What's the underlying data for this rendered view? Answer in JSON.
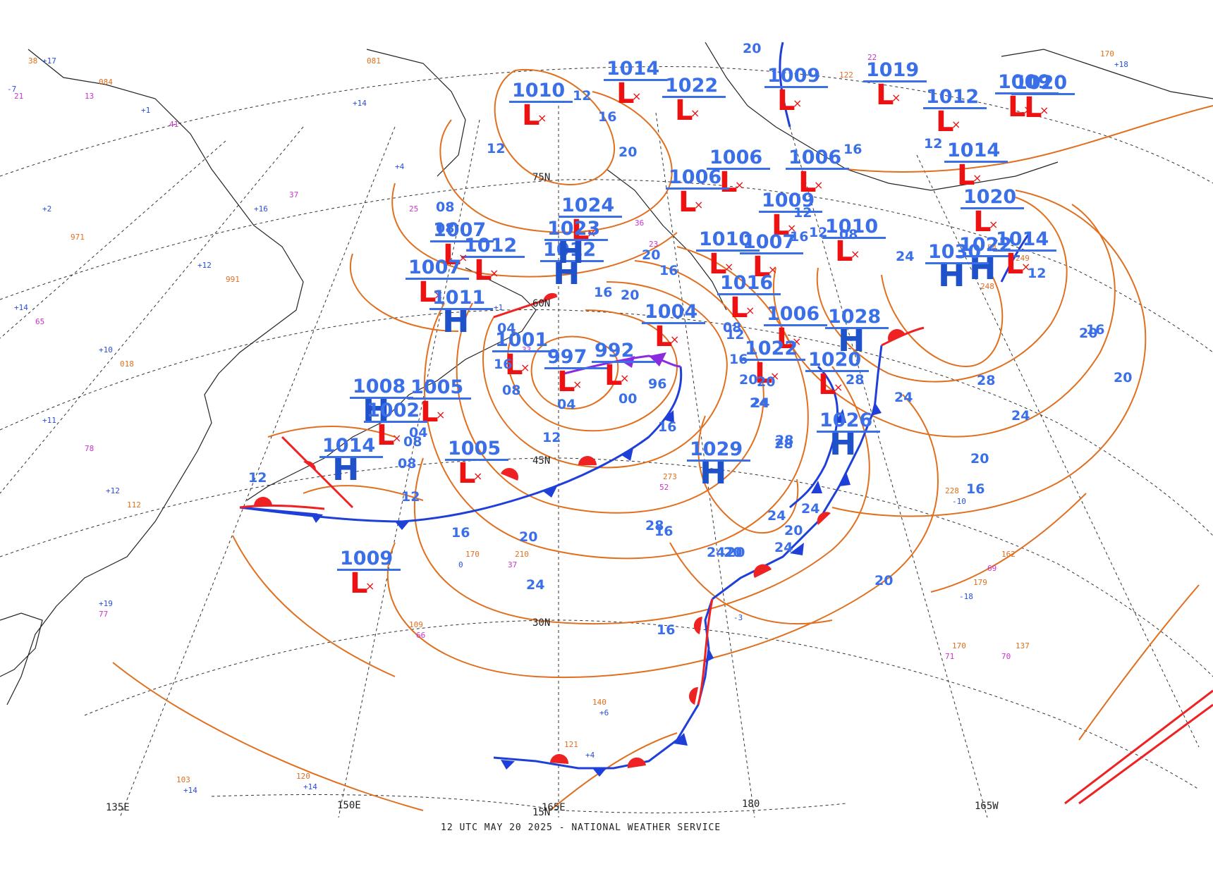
{
  "title": "12 UTC MAY 20 2025 - NATIONAL WEATHER SERVICE",
  "colors": {
    "isobar": "#e07020",
    "center_label": "#3a6fe8",
    "low_marker": "#ee1111",
    "high_marker": "#1f52c9",
    "cold_front": "#1f3fd9",
    "warm_front": "#ee2222",
    "occluded_front": "#8a2be2",
    "grid": "#333333",
    "coast": "#222222"
  },
  "grid_labels": {
    "lat_75": "75N",
    "lat_60": "60N",
    "lat_45": "45N",
    "lat_30": "30N",
    "lat_15": "15N",
    "lon_135e": "135E",
    "lon_150e": "150E",
    "lon_165e": "165E",
    "lon_180": "180",
    "lon_165w": "165W"
  },
  "pressure_centers": [
    {
      "type": "L",
      "value": "1014"
    },
    {
      "type": "L",
      "value": "1022"
    },
    {
      "type": "L",
      "value": "1010"
    },
    {
      "type": "L",
      "value": "1009"
    },
    {
      "type": "L",
      "value": "1019"
    },
    {
      "type": "L",
      "value": "1012"
    },
    {
      "type": "L",
      "value": "1009"
    },
    {
      "type": "H",
      "value": "1012"
    },
    {
      "type": "L",
      "value": "1020"
    },
    {
      "type": "L",
      "value": "1006"
    },
    {
      "type": "L",
      "value": "1006"
    },
    {
      "type": "L",
      "value": "1006"
    },
    {
      "type": "L",
      "value": "1014"
    },
    {
      "type": "L",
      "value": "1024"
    },
    {
      "type": "H",
      "value": "1023"
    },
    {
      "type": "L",
      "value": "1009"
    },
    {
      "type": "L",
      "value": "1020"
    },
    {
      "type": "L",
      "value": "1012"
    },
    {
      "type": "H",
      "value": "1022"
    },
    {
      "type": "L",
      "value": "1007"
    },
    {
      "type": "L",
      "value": "1007"
    },
    {
      "type": "L",
      "value": "1010"
    },
    {
      "type": "L",
      "value": "1014"
    },
    {
      "type": "L",
      "value": "1010"
    },
    {
      "type": "L",
      "value": "1007"
    },
    {
      "type": "L",
      "value": "1016"
    },
    {
      "type": "H",
      "value": "1030"
    },
    {
      "type": "H",
      "value": "1011"
    },
    {
      "type": "L",
      "value": "1004"
    },
    {
      "type": "H",
      "value": "1028"
    },
    {
      "type": "L",
      "value": "1006"
    },
    {
      "type": "L",
      "value": "1001"
    },
    {
      "type": "L",
      "value": "997"
    },
    {
      "type": "L",
      "value": "992"
    },
    {
      "type": "L",
      "value": "1022"
    },
    {
      "type": "L",
      "value": "1020"
    },
    {
      "type": "H",
      "value": "1008"
    },
    {
      "type": "L",
      "value": "1005"
    },
    {
      "type": "L",
      "value": "1002"
    },
    {
      "type": "H",
      "value": "1026"
    },
    {
      "type": "H",
      "value": "1014"
    },
    {
      "type": "L",
      "value": "1005"
    },
    {
      "type": "H",
      "value": "1029"
    },
    {
      "type": "L",
      "value": "1009"
    }
  ],
  "isobar_labels": [
    "20",
    "12",
    "16",
    "20",
    "16",
    "12",
    "12",
    "08",
    "08",
    "20",
    "16",
    "20",
    "16",
    "24",
    "12",
    "08",
    "12",
    "16",
    "20",
    "24",
    "28",
    "24",
    "20",
    "16",
    "04",
    "08",
    "04",
    "00",
    "96",
    "08",
    "12",
    "16",
    "20",
    "24",
    "28",
    "28",
    "24",
    "20",
    "16",
    "20",
    "24",
    "28",
    "20",
    "16",
    "12",
    "16",
    "12",
    "16",
    "20",
    "24",
    "20",
    "16",
    "12",
    "08",
    "04",
    "24",
    "20",
    "24",
    "28",
    "24",
    "20",
    "16",
    "12",
    "08"
  ]
}
